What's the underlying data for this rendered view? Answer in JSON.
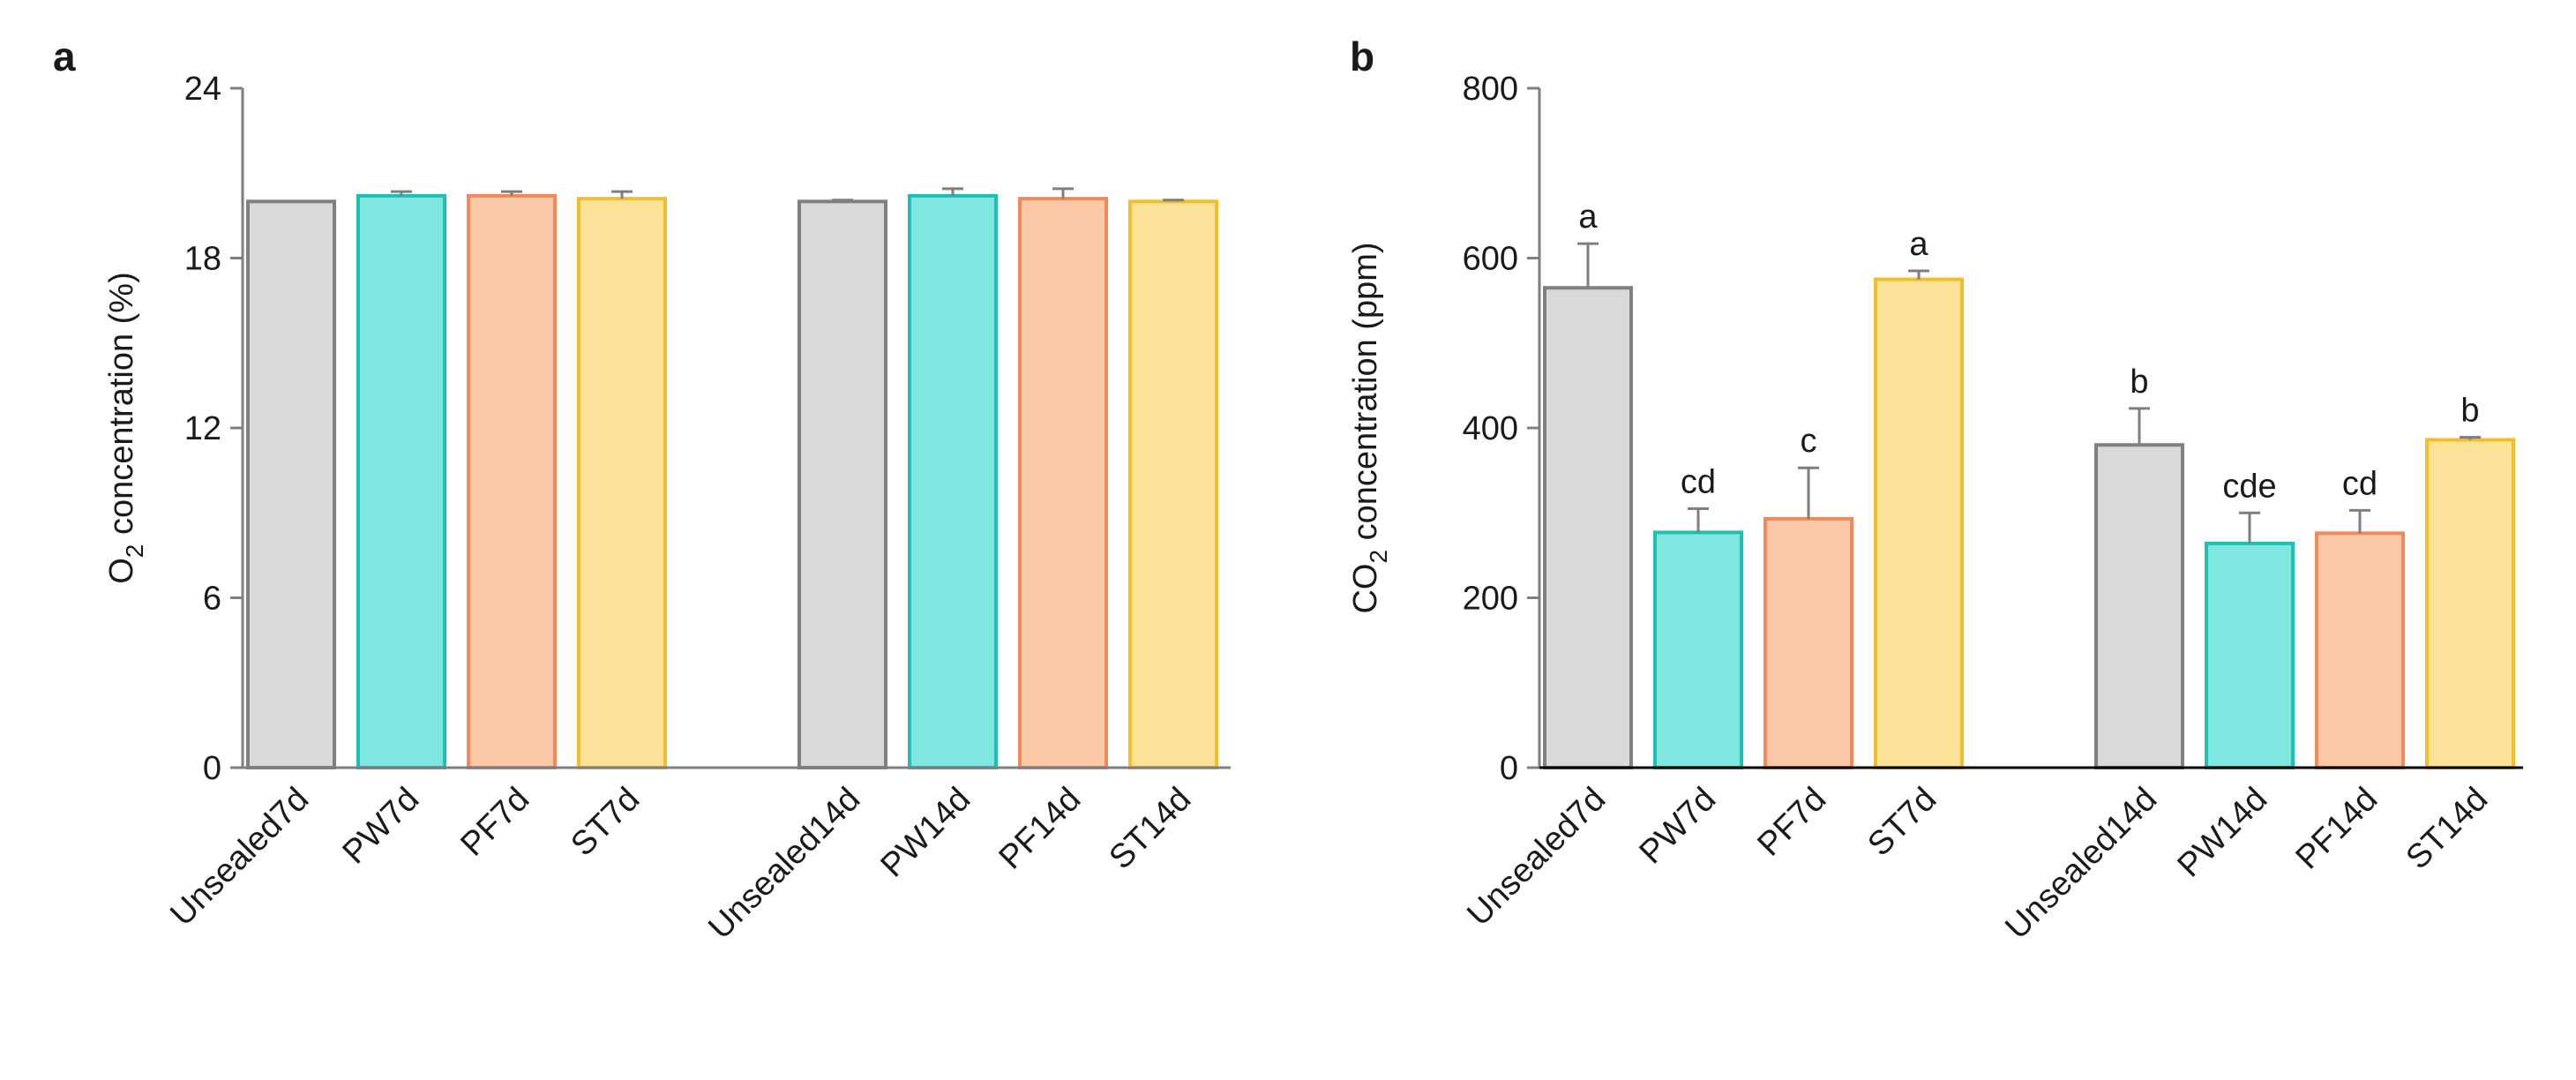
{
  "colors": {
    "Unsealed": {
      "fill": "#d9d9d9",
      "stroke": "#808080"
    },
    "PW": {
      "fill": "#7fe6e0",
      "stroke": "#1fbfb5"
    },
    "PF": {
      "fill": "#fcc9a8",
      "stroke": "#f08a5a"
    },
    "ST": {
      "fill": "#fde29a",
      "stroke": "#f2be2c"
    },
    "axis": "#7f7f7f",
    "errorbar": "#7f7f7f",
    "baseline": "#000000"
  },
  "chart_data": [
    {
      "panel_label": "a",
      "type": "bar",
      "ylabel_main": "O",
      "ylabel_sub": "2",
      "ylabel_rest": " concentration (%)",
      "ylim": [
        0,
        24
      ],
      "yticks": [
        0,
        6,
        12,
        18,
        24
      ],
      "ytick_labels": [
        "0",
        "6",
        "12",
        "18",
        "24"
      ],
      "categories": [
        "Unsealed7d",
        "PW7d",
        "PF7d",
        "ST7d",
        "Unsealed14d",
        "PW14d",
        "PF14d",
        "ST14d"
      ],
      "groups": [
        "Unsealed",
        "PW",
        "PF",
        "ST",
        "Unsealed",
        "PW",
        "PF",
        "ST"
      ],
      "values": [
        20.0,
        20.2,
        20.2,
        20.1,
        20.0,
        20.2,
        20.1,
        20.0
      ],
      "errors": [
        0.0,
        0.15,
        0.15,
        0.25,
        0.05,
        0.25,
        0.35,
        0.05
      ],
      "significance": [
        "",
        "",
        "",
        "",
        "",
        "",
        "",
        ""
      ]
    },
    {
      "panel_label": "b",
      "type": "bar",
      "ylabel_main": "CO",
      "ylabel_sub": "2",
      "ylabel_rest": " concentration (ppm)",
      "ylim": [
        0,
        800
      ],
      "yticks": [
        0,
        200,
        400,
        600,
        800
      ],
      "ytick_labels": [
        "0",
        "200",
        "400",
        "600",
        "800"
      ],
      "categories": [
        "Unsealed7d",
        "PW7d",
        "PF7d",
        "ST7d",
        "Unsealed14d",
        "PW14d",
        "PF14d",
        "ST14d"
      ],
      "groups": [
        "Unsealed",
        "PW",
        "PF",
        "ST",
        "Unsealed",
        "PW",
        "PF",
        "ST"
      ],
      "values": [
        565,
        277,
        293,
        575,
        380,
        264,
        276,
        386
      ],
      "errors": [
        52,
        28,
        60,
        10,
        43,
        36,
        27,
        3
      ],
      "significance": [
        "a",
        "cd",
        "c",
        "a",
        "b",
        "cde",
        "cd",
        "b"
      ]
    }
  ]
}
